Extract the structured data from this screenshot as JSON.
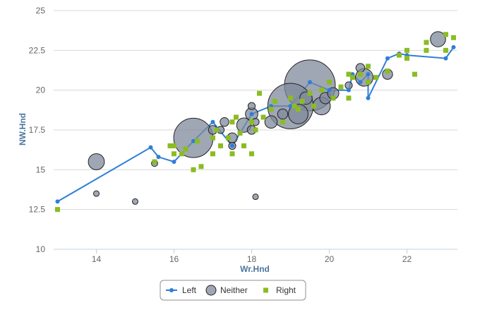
{
  "chart_data": {
    "type": "scatter",
    "xlabel": "Wr.Hnd",
    "ylabel": "NW.Hnd",
    "xlim": [
      12.9,
      23.3
    ],
    "ylim": [
      10,
      25
    ],
    "x_ticks": [
      "14",
      "16",
      "18",
      "20",
      "22"
    ],
    "y_ticks": [
      "10",
      "12.5",
      "15",
      "17.5",
      "20",
      "22.5",
      "25"
    ],
    "grid": "horizontal",
    "legend_position": "bottom-center",
    "colors": {
      "Left": "#2f7ed8",
      "Neither": "#7f8a9c",
      "Right": "#8bbc21"
    },
    "series": [
      {
        "name": "Left",
        "kind": "line",
        "points": [
          [
            13.0,
            13.0
          ],
          [
            15.4,
            16.4
          ],
          [
            15.6,
            15.8
          ],
          [
            16.0,
            15.5
          ],
          [
            16.5,
            16.8
          ],
          [
            17.0,
            18.0
          ],
          [
            17.5,
            16.5
          ],
          [
            18.0,
            18.5
          ],
          [
            18.5,
            19.0
          ],
          [
            19.0,
            19.0
          ],
          [
            19.5,
            20.5
          ],
          [
            20.0,
            20.0
          ],
          [
            20.5,
            20.0
          ],
          [
            20.6,
            21.0
          ],
          [
            20.8,
            20.5
          ],
          [
            21.0,
            21.0
          ],
          [
            21.0,
            19.5
          ],
          [
            21.5,
            22.0
          ],
          [
            21.8,
            22.3
          ],
          [
            22.0,
            22.2
          ],
          [
            23.0,
            22.0
          ],
          [
            23.2,
            22.7
          ]
        ]
      },
      {
        "name": "Neither",
        "kind": "bubble",
        "points": [
          [
            14.0,
            15.5,
            1
          ],
          [
            14.0,
            13.5,
            0.1
          ],
          [
            15.0,
            13.0,
            0.1
          ],
          [
            15.5,
            15.4,
            0.15
          ],
          [
            16.5,
            17.0,
            6
          ],
          [
            17.0,
            17.5,
            0.3
          ],
          [
            17.2,
            17.5,
            0.2
          ],
          [
            17.3,
            18.0,
            0.3
          ],
          [
            17.5,
            17.0,
            0.4
          ],
          [
            17.5,
            16.5,
            0.2
          ],
          [
            17.8,
            17.8,
            0.8
          ],
          [
            18.0,
            18.5,
            0.6
          ],
          [
            18.0,
            17.5,
            0.3
          ],
          [
            18.0,
            19.0,
            0.2
          ],
          [
            18.1,
            18.0,
            0.2
          ],
          [
            18.1,
            13.3,
            0.1
          ],
          [
            18.5,
            18.0,
            0.6
          ],
          [
            18.8,
            18.5,
            0.4
          ],
          [
            19.0,
            19.0,
            8
          ],
          [
            19.2,
            18.5,
            1.5
          ],
          [
            19.4,
            19.5,
            0.6
          ],
          [
            19.5,
            20.3,
            10
          ],
          [
            19.8,
            19.0,
            1.2
          ],
          [
            19.9,
            19.5,
            0.5
          ],
          [
            20.1,
            19.8,
            0.5
          ],
          [
            20.5,
            20.3,
            0.2
          ],
          [
            20.8,
            21.4,
            0.3
          ],
          [
            20.9,
            20.8,
            1.2
          ],
          [
            21.5,
            21.0,
            0.4
          ],
          [
            22.8,
            23.2,
            0.9
          ]
        ]
      },
      {
        "name": "Right",
        "kind": "scatter",
        "points": [
          [
            13.0,
            12.5
          ],
          [
            15.5,
            15.5
          ],
          [
            15.9,
            16.5
          ],
          [
            16.0,
            16.0
          ],
          [
            16.0,
            16.5
          ],
          [
            16.2,
            16.0
          ],
          [
            16.3,
            16.3
          ],
          [
            16.5,
            15.0
          ],
          [
            16.6,
            16.8
          ],
          [
            16.7,
            15.2
          ],
          [
            17.0,
            16.0
          ],
          [
            17.0,
            17.0
          ],
          [
            17.1,
            17.5
          ],
          [
            17.2,
            16.5
          ],
          [
            17.4,
            17.0
          ],
          [
            17.5,
            18.0
          ],
          [
            17.6,
            18.3
          ],
          [
            17.5,
            16.0
          ],
          [
            17.7,
            17.3
          ],
          [
            17.8,
            16.5
          ],
          [
            18.0,
            16.0
          ],
          [
            18.0,
            18.0
          ],
          [
            18.1,
            17.5
          ],
          [
            18.2,
            19.8
          ],
          [
            18.3,
            18.3
          ],
          [
            18.5,
            18.8
          ],
          [
            18.6,
            19.3
          ],
          [
            18.8,
            18.0
          ],
          [
            19.0,
            19.5
          ],
          [
            19.1,
            19.0
          ],
          [
            19.2,
            18.8
          ],
          [
            19.3,
            19.3
          ],
          [
            19.5,
            19.8
          ],
          [
            19.6,
            19.0
          ],
          [
            19.8,
            20.0
          ],
          [
            20.0,
            20.5
          ],
          [
            20.1,
            19.5
          ],
          [
            20.3,
            20.2
          ],
          [
            20.5,
            21.0
          ],
          [
            20.5,
            19.5
          ],
          [
            20.6,
            20.8
          ],
          [
            20.8,
            21.0
          ],
          [
            21.0,
            20.5
          ],
          [
            21.0,
            21.5
          ],
          [
            21.2,
            20.8
          ],
          [
            21.5,
            21.2
          ],
          [
            21.8,
            22.2
          ],
          [
            22.0,
            22.5
          ],
          [
            22.0,
            22.0
          ],
          [
            22.2,
            21.0
          ],
          [
            22.5,
            22.5
          ],
          [
            22.5,
            23.0
          ],
          [
            23.0,
            23.5
          ],
          [
            23.0,
            22.5
          ],
          [
            23.2,
            23.3
          ]
        ]
      }
    ]
  }
}
